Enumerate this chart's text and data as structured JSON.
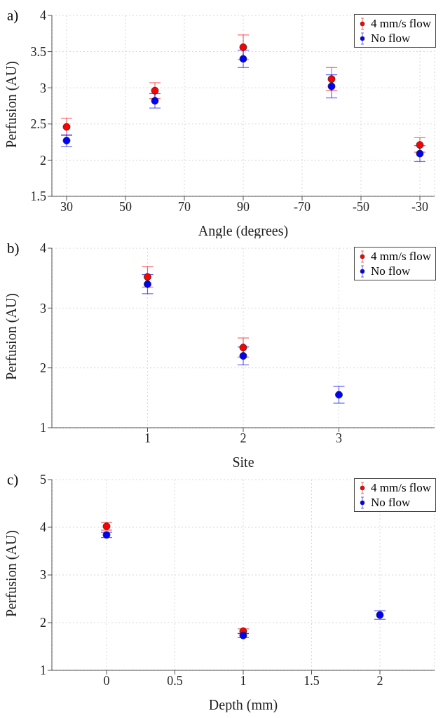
{
  "chart_data": [
    {
      "type": "scatter",
      "title": "a)",
      "xlabel": "Angle (degrees)",
      "ylabel": "Perfusion (AU)",
      "categories": [
        "30",
        null,
        "50",
        null,
        "70",
        null,
        "90",
        null,
        "-70",
        null,
        "-50",
        null,
        "-30"
      ],
      "ylim": [
        1.5,
        4
      ],
      "yticks": [
        1.5,
        2,
        2.5,
        3,
        3.5,
        4
      ],
      "grid": true,
      "legend": "top right",
      "marker": "circle",
      "series": [
        {
          "name": "4 mm/s flow",
          "color": "#ff0000",
          "values": [
            2.46,
            null,
            null,
            2.96,
            null,
            null,
            3.56,
            null,
            null,
            3.12,
            null,
            null,
            2.21
          ],
          "errors": [
            0.12,
            null,
            null,
            0.11,
            null,
            null,
            0.17,
            null,
            null,
            0.16,
            null,
            null,
            0.1
          ]
        },
        {
          "name": "No flow",
          "color": "#0000ff",
          "values": [
            2.27,
            null,
            null,
            2.82,
            null,
            null,
            3.4,
            null,
            null,
            3.02,
            null,
            null,
            2.09
          ],
          "errors": [
            0.08,
            null,
            null,
            0.1,
            null,
            null,
            0.12,
            null,
            null,
            0.16,
            null,
            null,
            0.11
          ]
        }
      ]
    },
    {
      "type": "scatter",
      "title": "b)",
      "xlabel": "Site",
      "ylabel": "Perfusion (AU)",
      "x": [
        1,
        2,
        3
      ],
      "xlim": [
        0,
        4
      ],
      "xticks": [
        1,
        2,
        3
      ],
      "ylim": [
        1,
        4
      ],
      "yticks": [
        1,
        2,
        3,
        4
      ],
      "grid": true,
      "legend": "top right",
      "marker": "circle",
      "series": [
        {
          "name": "4 mm/s flow",
          "color": "#ff0000",
          "values": [
            3.52,
            2.34,
            null
          ],
          "errors": [
            0.17,
            0.16,
            null
          ]
        },
        {
          "name": "No flow",
          "color": "#0000ff",
          "values": [
            3.4,
            2.2,
            1.55
          ],
          "errors": [
            0.16,
            0.15,
            0.14
          ]
        }
      ]
    },
    {
      "type": "scatter",
      "title": "c)",
      "xlabel": "Depth (mm)",
      "ylabel": "Perfusion (AU)",
      "x": [
        0,
        1,
        2
      ],
      "xlim": [
        -0.4,
        2.4
      ],
      "xticks": [
        0,
        0.5,
        1,
        1.5,
        2
      ],
      "ylim": [
        1,
        5
      ],
      "yticks": [
        1,
        2,
        3,
        4,
        5
      ],
      "grid": true,
      "legend": "top right",
      "marker": "circle",
      "series": [
        {
          "name": "4 mm/s flow",
          "color": "#ff0000",
          "values": [
            4.02,
            1.82,
            null
          ],
          "errors": [
            0.08,
            0.05,
            null
          ]
        },
        {
          "name": "No flow",
          "color": "#0000ff",
          "values": [
            3.84,
            1.73,
            2.16
          ],
          "errors": [
            0.055,
            0.045,
            0.09
          ]
        }
      ]
    }
  ]
}
